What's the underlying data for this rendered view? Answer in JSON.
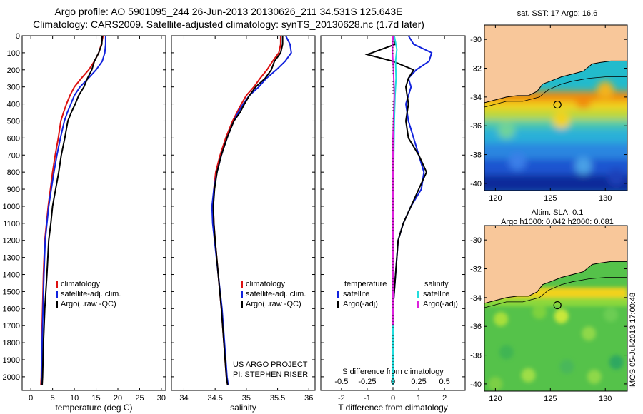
{
  "header": {
    "line1": "Argo profile: AO 5901095_244 26-Jun-2013 20130626_211 34.531S 125.643E",
    "line2": "Climatology: CARS2009. Satellite-adjusted climatology: synTS_20130628.nc (1.7d later)"
  },
  "colors": {
    "climatology": "#dd1111",
    "satellite": "#1122dd",
    "argo": "#000000",
    "cyan": "#22dddd",
    "magenta": "#dd22dd",
    "land": "#f8c79a"
  },
  "chart_data": [
    {
      "type": "line",
      "id": "temperature",
      "xlabel": "temperature (deg C)",
      "ylabel": "",
      "xlim": [
        -2,
        31
      ],
      "ylim": [
        2080,
        0
      ],
      "xticks": [
        0,
        5,
        10,
        15,
        20,
        25,
        30
      ],
      "yticks": [
        0,
        100,
        200,
        300,
        400,
        500,
        600,
        700,
        800,
        900,
        1000,
        1100,
        1200,
        1300,
        1400,
        1500,
        1600,
        1700,
        1800,
        1900,
        2000
      ],
      "legend": [
        "climatology",
        "satellite-adj. clim.",
        "Argo(..raw -QC)"
      ],
      "series": [
        {
          "name": "climatology",
          "color": "#dd1111",
          "x": [
            16.6,
            16.2,
            15.6,
            14.6,
            13.3,
            11.6,
            10.0,
            9.0,
            8.2,
            7.5,
            6.9,
            6.3,
            5.6,
            5.0,
            4.5,
            4.0,
            3.6,
            3.2,
            2.9,
            2.7,
            2.5,
            2.4,
            2.3
          ],
          "y": [
            0,
            50,
            100,
            150,
            200,
            250,
            300,
            350,
            400,
            450,
            500,
            600,
            700,
            800,
            900,
            1000,
            1100,
            1200,
            1400,
            1600,
            1800,
            2000,
            2050
          ]
        },
        {
          "name": "satellite-adj. clim.",
          "color": "#1122dd",
          "x": [
            17.2,
            17.2,
            17.0,
            16.4,
            15.0,
            13.2,
            11.3,
            10.0,
            9.2,
            8.4,
            7.7,
            6.8,
            6.0,
            5.3,
            4.7,
            4.1,
            3.7,
            3.3,
            3.0,
            2.8,
            2.6,
            2.5,
            2.4
          ],
          "y": [
            0,
            50,
            100,
            150,
            200,
            250,
            300,
            350,
            400,
            450,
            500,
            600,
            700,
            800,
            900,
            1000,
            1100,
            1200,
            1400,
            1600,
            1800,
            2000,
            2050
          ]
        },
        {
          "name": "Argo(..raw -QC)",
          "color": "#000000",
          "x": [
            16.4,
            16.3,
            15.6,
            14.6,
            14.0,
            13.0,
            12.2,
            11.0,
            10.2,
            9.3,
            8.5,
            7.8,
            7.0,
            6.4,
            5.7,
            5.0,
            4.6,
            4.1,
            3.7,
            3.2,
            2.9,
            2.7,
            2.6
          ],
          "y": [
            0,
            50,
            100,
            150,
            200,
            250,
            300,
            350,
            400,
            450,
            500,
            600,
            700,
            800,
            900,
            1000,
            1100,
            1200,
            1400,
            1600,
            1800,
            2000,
            2050
          ]
        }
      ]
    },
    {
      "type": "line",
      "id": "salinity",
      "xlabel": "salinity",
      "ylabel": "",
      "xlim": [
        33.8,
        36.1
      ],
      "ylim": [
        2080,
        0
      ],
      "xticks": [
        34,
        34.5,
        35,
        35.5,
        36
      ],
      "legend": [
        "climatology",
        "satellite-adj. clim.",
        "Argo(..raw -QC)"
      ],
      "series": [
        {
          "name": "climatology",
          "color": "#dd1111",
          "x": [
            35.55,
            35.55,
            35.52,
            35.42,
            35.33,
            35.22,
            35.12,
            35.0,
            34.92,
            34.85,
            34.78,
            34.67,
            34.58,
            34.51,
            34.48,
            34.47,
            34.48,
            34.5,
            34.55,
            34.6,
            34.64,
            34.68,
            34.7
          ],
          "y": [
            0,
            50,
            100,
            150,
            200,
            250,
            300,
            350,
            400,
            450,
            500,
            600,
            700,
            800,
            900,
            1000,
            1100,
            1200,
            1400,
            1600,
            1800,
            2000,
            2050
          ]
        },
        {
          "name": "satellite-adj. clim.",
          "color": "#1122dd",
          "x": [
            35.63,
            35.7,
            35.72,
            35.62,
            35.48,
            35.32,
            35.2,
            35.05,
            34.95,
            34.87,
            34.8,
            34.69,
            34.6,
            34.53,
            34.48,
            34.45,
            34.46,
            34.49,
            34.55,
            34.61,
            34.65,
            34.69,
            34.71
          ],
          "y": [
            0,
            50,
            100,
            150,
            200,
            250,
            300,
            350,
            400,
            450,
            500,
            600,
            700,
            800,
            900,
            1000,
            1100,
            1200,
            1400,
            1600,
            1800,
            2000,
            2050
          ]
        },
        {
          "name": "Argo(..raw -QC)",
          "color": "#000000",
          "x": [
            35.58,
            35.58,
            35.55,
            35.45,
            35.4,
            35.3,
            35.15,
            35.05,
            34.97,
            34.9,
            34.8,
            34.69,
            34.6,
            34.53,
            34.49,
            34.47,
            34.48,
            34.5,
            34.55,
            34.6,
            34.64,
            34.68,
            34.7
          ],
          "y": [
            0,
            50,
            100,
            150,
            200,
            250,
            300,
            350,
            400,
            450,
            500,
            600,
            700,
            800,
            900,
            1000,
            1100,
            1200,
            1400,
            1600,
            1800,
            2000,
            2050
          ]
        }
      ],
      "annotations": [
        "US ARGO PROJECT",
        "PI: STEPHEN RISER"
      ]
    },
    {
      "type": "line",
      "id": "difference",
      "xlabel": "T difference from climatology",
      "title": "S difference from climatology",
      "xlim": [
        -2.8,
        2.8
      ],
      "ylim": [
        2080,
        0
      ],
      "xticks": [
        -2,
        -1,
        0,
        1,
        2
      ],
      "xticklabels": [
        "-2",
        "-1",
        "0",
        "1",
        "2"
      ],
      "top_ticks": [
        -0.5,
        -0.25,
        0,
        0.25,
        0.5
      ],
      "top_ticklabels": [
        "-0.5",
        "-0.25",
        "0",
        "0.25",
        "0.5"
      ],
      "legend_groups": [
        {
          "heading": "temperature",
          "items": [
            {
              "name": "satellite",
              "color": "#1122dd"
            },
            {
              "name": "Argo(-adj)",
              "color": "#000000"
            }
          ]
        },
        {
          "heading": "salinity",
          "items": [
            {
              "name": "satellite",
              "color": "#22dddd"
            },
            {
              "name": "Argo(-adj)",
              "color": "#dd22dd"
            }
          ]
        }
      ],
      "series": [
        {
          "name": "temperature satellite",
          "color": "#1122dd",
          "x": [
            0.6,
            0.8,
            1.5,
            1.4,
            0.9,
            0.6,
            0.7,
            0.5,
            0.6,
            0.8,
            1.0,
            1.2,
            1.1,
            0.7,
            0.4,
            0.2,
            0.1,
            0.0,
            0.0,
            0.0,
            0.0
          ],
          "y": [
            0,
            50,
            100,
            150,
            200,
            250,
            300,
            400,
            500,
            600,
            700,
            800,
            900,
            1000,
            1100,
            1200,
            1400,
            1600,
            1800,
            2000,
            2050
          ]
        },
        {
          "name": "temperature Argo(-adj)",
          "color": "#000000",
          "x": [
            0.0,
            0.1,
            -1.0,
            0.0,
            0.8,
            0.6,
            0.5,
            0.6,
            0.5,
            0.6,
            1.0,
            1.3,
            1.0,
            0.7,
            0.4,
            0.2,
            0.1,
            0.0,
            0.0,
            0.0,
            0.0
          ],
          "y": [
            0,
            50,
            110,
            150,
            200,
            250,
            300,
            400,
            500,
            600,
            700,
            800,
            900,
            1000,
            1100,
            1200,
            1400,
            1600,
            1800,
            2000,
            2050
          ]
        },
        {
          "name": "salinity satellite",
          "color": "#22dddd",
          "x": [
            0.05,
            0.15,
            0.1,
            0.12,
            0.08,
            0.05,
            0.03,
            0.02,
            0.0,
            0.0,
            0.0,
            0.0,
            0.0,
            0.0
          ],
          "y": [
            0,
            80,
            150,
            250,
            350,
            500,
            700,
            900,
            1100,
            1300,
            1500,
            1700,
            1900,
            2050
          ]
        },
        {
          "name": "salinity Argo(-adj)",
          "color": "#dd22dd",
          "x": [
            0.0,
            -0.02,
            0.02,
            0.05,
            0.0,
            0.0,
            0.0,
            0.0,
            0.0
          ],
          "y": [
            0,
            100,
            200,
            350,
            600,
            900,
            1100,
            1400,
            1700
          ]
        }
      ]
    },
    {
      "type": "heatmap",
      "id": "sst-map",
      "title": "sat. SST: 17 Argo: 16.6",
      "xlim": [
        119,
        132
      ],
      "ylim": [
        -40.5,
        -29
      ],
      "xticks": [
        120,
        125,
        130
      ],
      "yticks": [
        -30,
        -32,
        -34,
        -36,
        -38,
        -40
      ],
      "marker": {
        "x": 125.643,
        "y": -34.531
      }
    },
    {
      "type": "heatmap",
      "id": "sla-map",
      "title": "Altim. SLA: 0.1",
      "subtitle": "Argo h1000: 0.042 h2000: 0.081",
      "xlim": [
        119,
        132
      ],
      "ylim": [
        -40.5,
        -29
      ],
      "xticks": [
        120,
        125,
        130
      ],
      "yticks": [
        -30,
        -32,
        -34,
        -36,
        -38,
        -40
      ],
      "marker": {
        "x": 125.643,
        "y": -34.531
      }
    }
  ],
  "footer": {
    "imos": "IMOS 05-Jul-2013 17:00:48"
  }
}
